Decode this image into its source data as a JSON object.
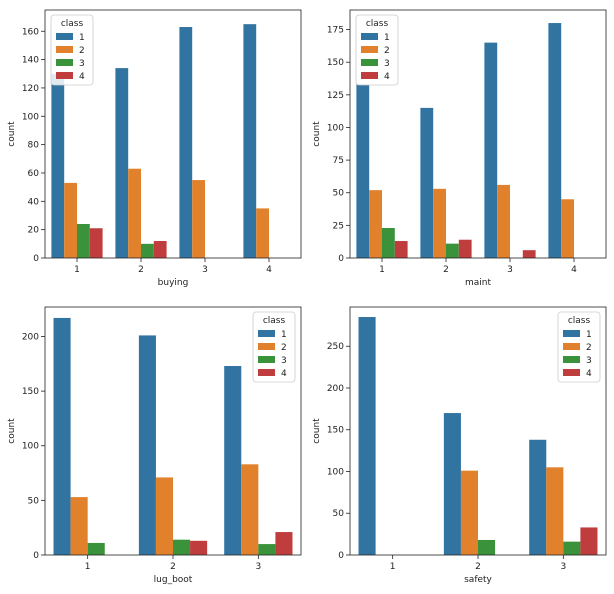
{
  "colors": {
    "1": "#3274a1",
    "2": "#e1812c",
    "3": "#3a923a",
    "4": "#c03d3e"
  },
  "legend_title": "class",
  "classes": [
    "1",
    "2",
    "3",
    "4"
  ],
  "chart_data": [
    {
      "type": "bar",
      "xlabel": "buying",
      "ylabel": "count",
      "categories": [
        "1",
        "2",
        "3",
        "4"
      ],
      "ylim": [
        0,
        175
      ],
      "yticks": [
        0,
        20,
        40,
        60,
        80,
        100,
        120,
        140,
        160
      ],
      "legend_position": "top-left",
      "series": [
        {
          "name": "1",
          "values": [
            130,
            134,
            163,
            165
          ]
        },
        {
          "name": "2",
          "values": [
            53,
            63,
            55,
            35
          ]
        },
        {
          "name": "3",
          "values": [
            24,
            10,
            0,
            0
          ]
        },
        {
          "name": "4",
          "values": [
            21,
            12,
            0,
            0
          ]
        }
      ]
    },
    {
      "type": "bar",
      "xlabel": "maint",
      "ylabel": "count",
      "categories": [
        "1",
        "2",
        "3",
        "4"
      ],
      "ylim": [
        0,
        190
      ],
      "yticks": [
        0,
        25,
        50,
        75,
        100,
        125,
        150,
        175
      ],
      "legend_position": "top-left",
      "series": [
        {
          "name": "1",
          "values": [
            133,
            115,
            165,
            180
          ]
        },
        {
          "name": "2",
          "values": [
            52,
            53,
            56,
            45
          ]
        },
        {
          "name": "3",
          "values": [
            23,
            11,
            0,
            0
          ]
        },
        {
          "name": "4",
          "values": [
            13,
            14,
            6,
            0
          ]
        }
      ]
    },
    {
      "type": "bar",
      "xlabel": "lug_boot",
      "ylabel": "count",
      "categories": [
        "1",
        "2",
        "3"
      ],
      "ylim": [
        0,
        227
      ],
      "yticks": [
        0,
        50,
        100,
        150,
        200
      ],
      "legend_position": "top-right",
      "series": [
        {
          "name": "1",
          "values": [
            217,
            201,
            173
          ]
        },
        {
          "name": "2",
          "values": [
            53,
            71,
            83
          ]
        },
        {
          "name": "3",
          "values": [
            11,
            14,
            10
          ]
        },
        {
          "name": "4",
          "values": [
            0,
            13,
            21
          ]
        }
      ]
    },
    {
      "type": "bar",
      "xlabel": "safety",
      "ylabel": "count",
      "categories": [
        "1",
        "2",
        "3"
      ],
      "ylim": [
        0,
        297
      ],
      "yticks": [
        0,
        50,
        100,
        150,
        200,
        250
      ],
      "legend_position": "top-right",
      "series": [
        {
          "name": "1",
          "values": [
            285,
            170,
            138
          ]
        },
        {
          "name": "2",
          "values": [
            0,
            101,
            105
          ]
        },
        {
          "name": "3",
          "values": [
            0,
            18,
            16
          ]
        },
        {
          "name": "4",
          "values": [
            0,
            0,
            33
          ]
        }
      ]
    }
  ]
}
